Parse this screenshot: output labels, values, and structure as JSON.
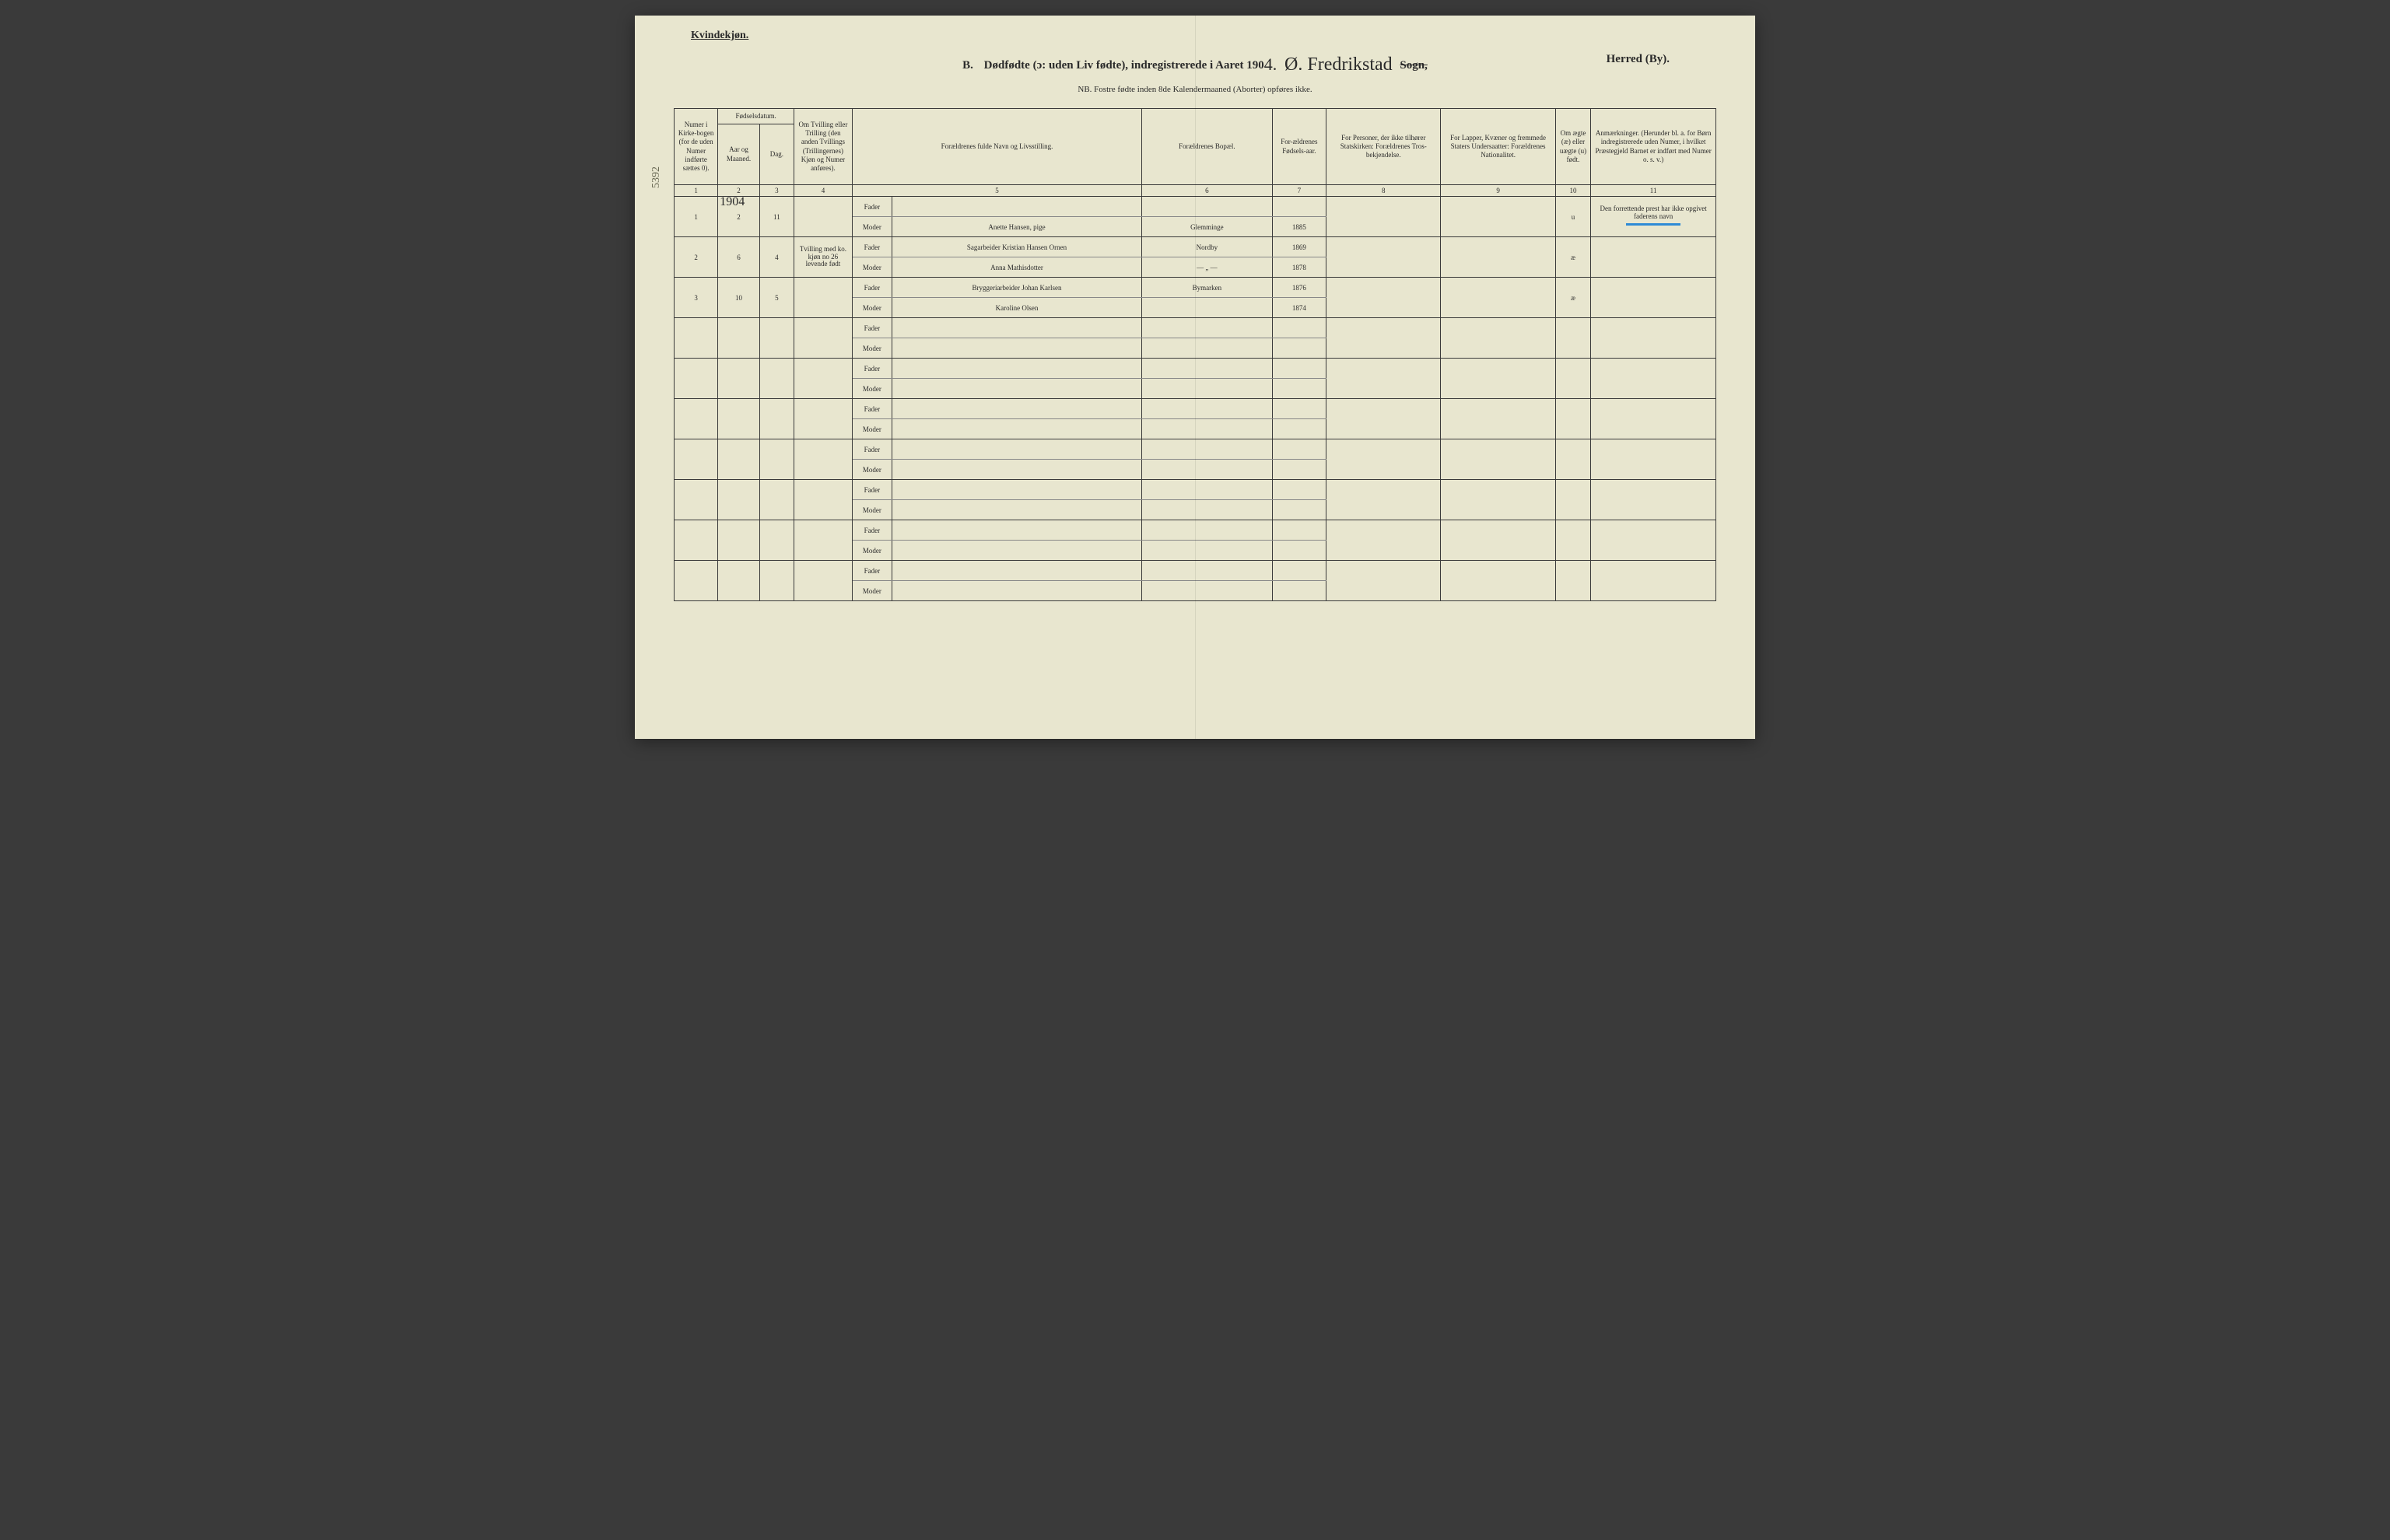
{
  "header": {
    "gender": "Kvindekjøn.",
    "section_letter": "B.",
    "title_main": "Dødfødte (ɔ: uden Liv fødte), indregistrerede i Aaret 190",
    "year_suffix_hand": "4.",
    "parish_hand": "Ø. Fredrikstad",
    "sogn_label": "Sogn,",
    "herred_label": "Herred (By).",
    "sub_note": "NB.  Fostre fødte inden 8de Kalendermaaned (Aborter) opføres ikke."
  },
  "columns": {
    "widths_pct": [
      4.2,
      4.0,
      3.3,
      5.6,
      3.8,
      24.0,
      12.5,
      5.2,
      11.0,
      11.0,
      3.4,
      12.0
    ],
    "headers": [
      "Numer i Kirke-bogen (for de uden Numer indførte sættes 0).",
      "Aar og Maaned.",
      "Dag.",
      "Om Tvilling eller Trilling (den anden Tvillings (Trillingernes) Kjøn og Numer anføres).",
      "",
      "Forældrenes fulde Navn og Livsstilling.",
      "Forældrenes Bopæl.",
      "For-ældrenes Fødsels-aar.",
      "For Personer, der ikke tilhører Statskirken: Forældrenes Tros-bekjendelse.",
      "For Lapper, Kvæner og fremmede Staters Undersaatter: Forældrenes Nationalitet.",
      "Om ægte (æ) eller uægte (u) født.",
      "Anmærkninger. (Herunder bl. a. for Børn indregistrerede uden Numer, i hvilket Præstegjeld Barnet er indført med Numer o. s. v.)"
    ],
    "fodsel_group": "Fødselsdatum.",
    "numbers": [
      "1",
      "2",
      "3",
      "4",
      "5",
      "",
      "6",
      "7",
      "8",
      "9",
      "10",
      "11"
    ]
  },
  "margin_note": "5392",
  "year_above_col": "1904",
  "labels": {
    "fader": "Fader",
    "moder": "Moder"
  },
  "rows": [
    {
      "num": "1",
      "month": "2",
      "day": "11",
      "twin": "",
      "fader": "",
      "moder": "Anette Hansen, pige",
      "bopael_f": "",
      "bopael_m": "Glemminge",
      "aar_f": "",
      "aar_m": "1885",
      "tros": "",
      "nat": "",
      "legit": "u",
      "remarks": "Den forrettende prest har ikke opgivet faderens navn"
    },
    {
      "num": "2",
      "month": "6",
      "day": "4",
      "twin": "Tvilling med ko. kjøn no 26 levende født",
      "fader": "Sagarbeider Kristian Hansen Ornen",
      "moder": "Anna Mathisdotter",
      "bopael_f": "Nordby",
      "bopael_m": "— „ —",
      "aar_f": "1869",
      "aar_m": "1878",
      "tros": "",
      "nat": "",
      "legit": "æ",
      "remarks": ""
    },
    {
      "num": "3",
      "month": "10",
      "day": "5",
      "twin": "",
      "fader": "Bryggeriarbeider Johan Karlsen",
      "moder": "Karoline Olsen",
      "bopael_f": "Bymarken",
      "bopael_m": "",
      "aar_f": "1876",
      "aar_m": "1874",
      "tros": "",
      "nat": "",
      "legit": "æ",
      "remarks": ""
    }
  ],
  "blank_rows": 7,
  "colors": {
    "paper": "#e8e6cf",
    "ink": "#2a2a2a",
    "rule": "#3a3a3a",
    "blue_mark": "#2f8bd6",
    "backdrop": "#3a3a3a"
  },
  "typography": {
    "print_family": "Georgia, Times New Roman, serif",
    "hand_family": "Brush Script MT, cursive",
    "header_fontsize_pt": 9,
    "hand_fontsize_pt": 19
  }
}
